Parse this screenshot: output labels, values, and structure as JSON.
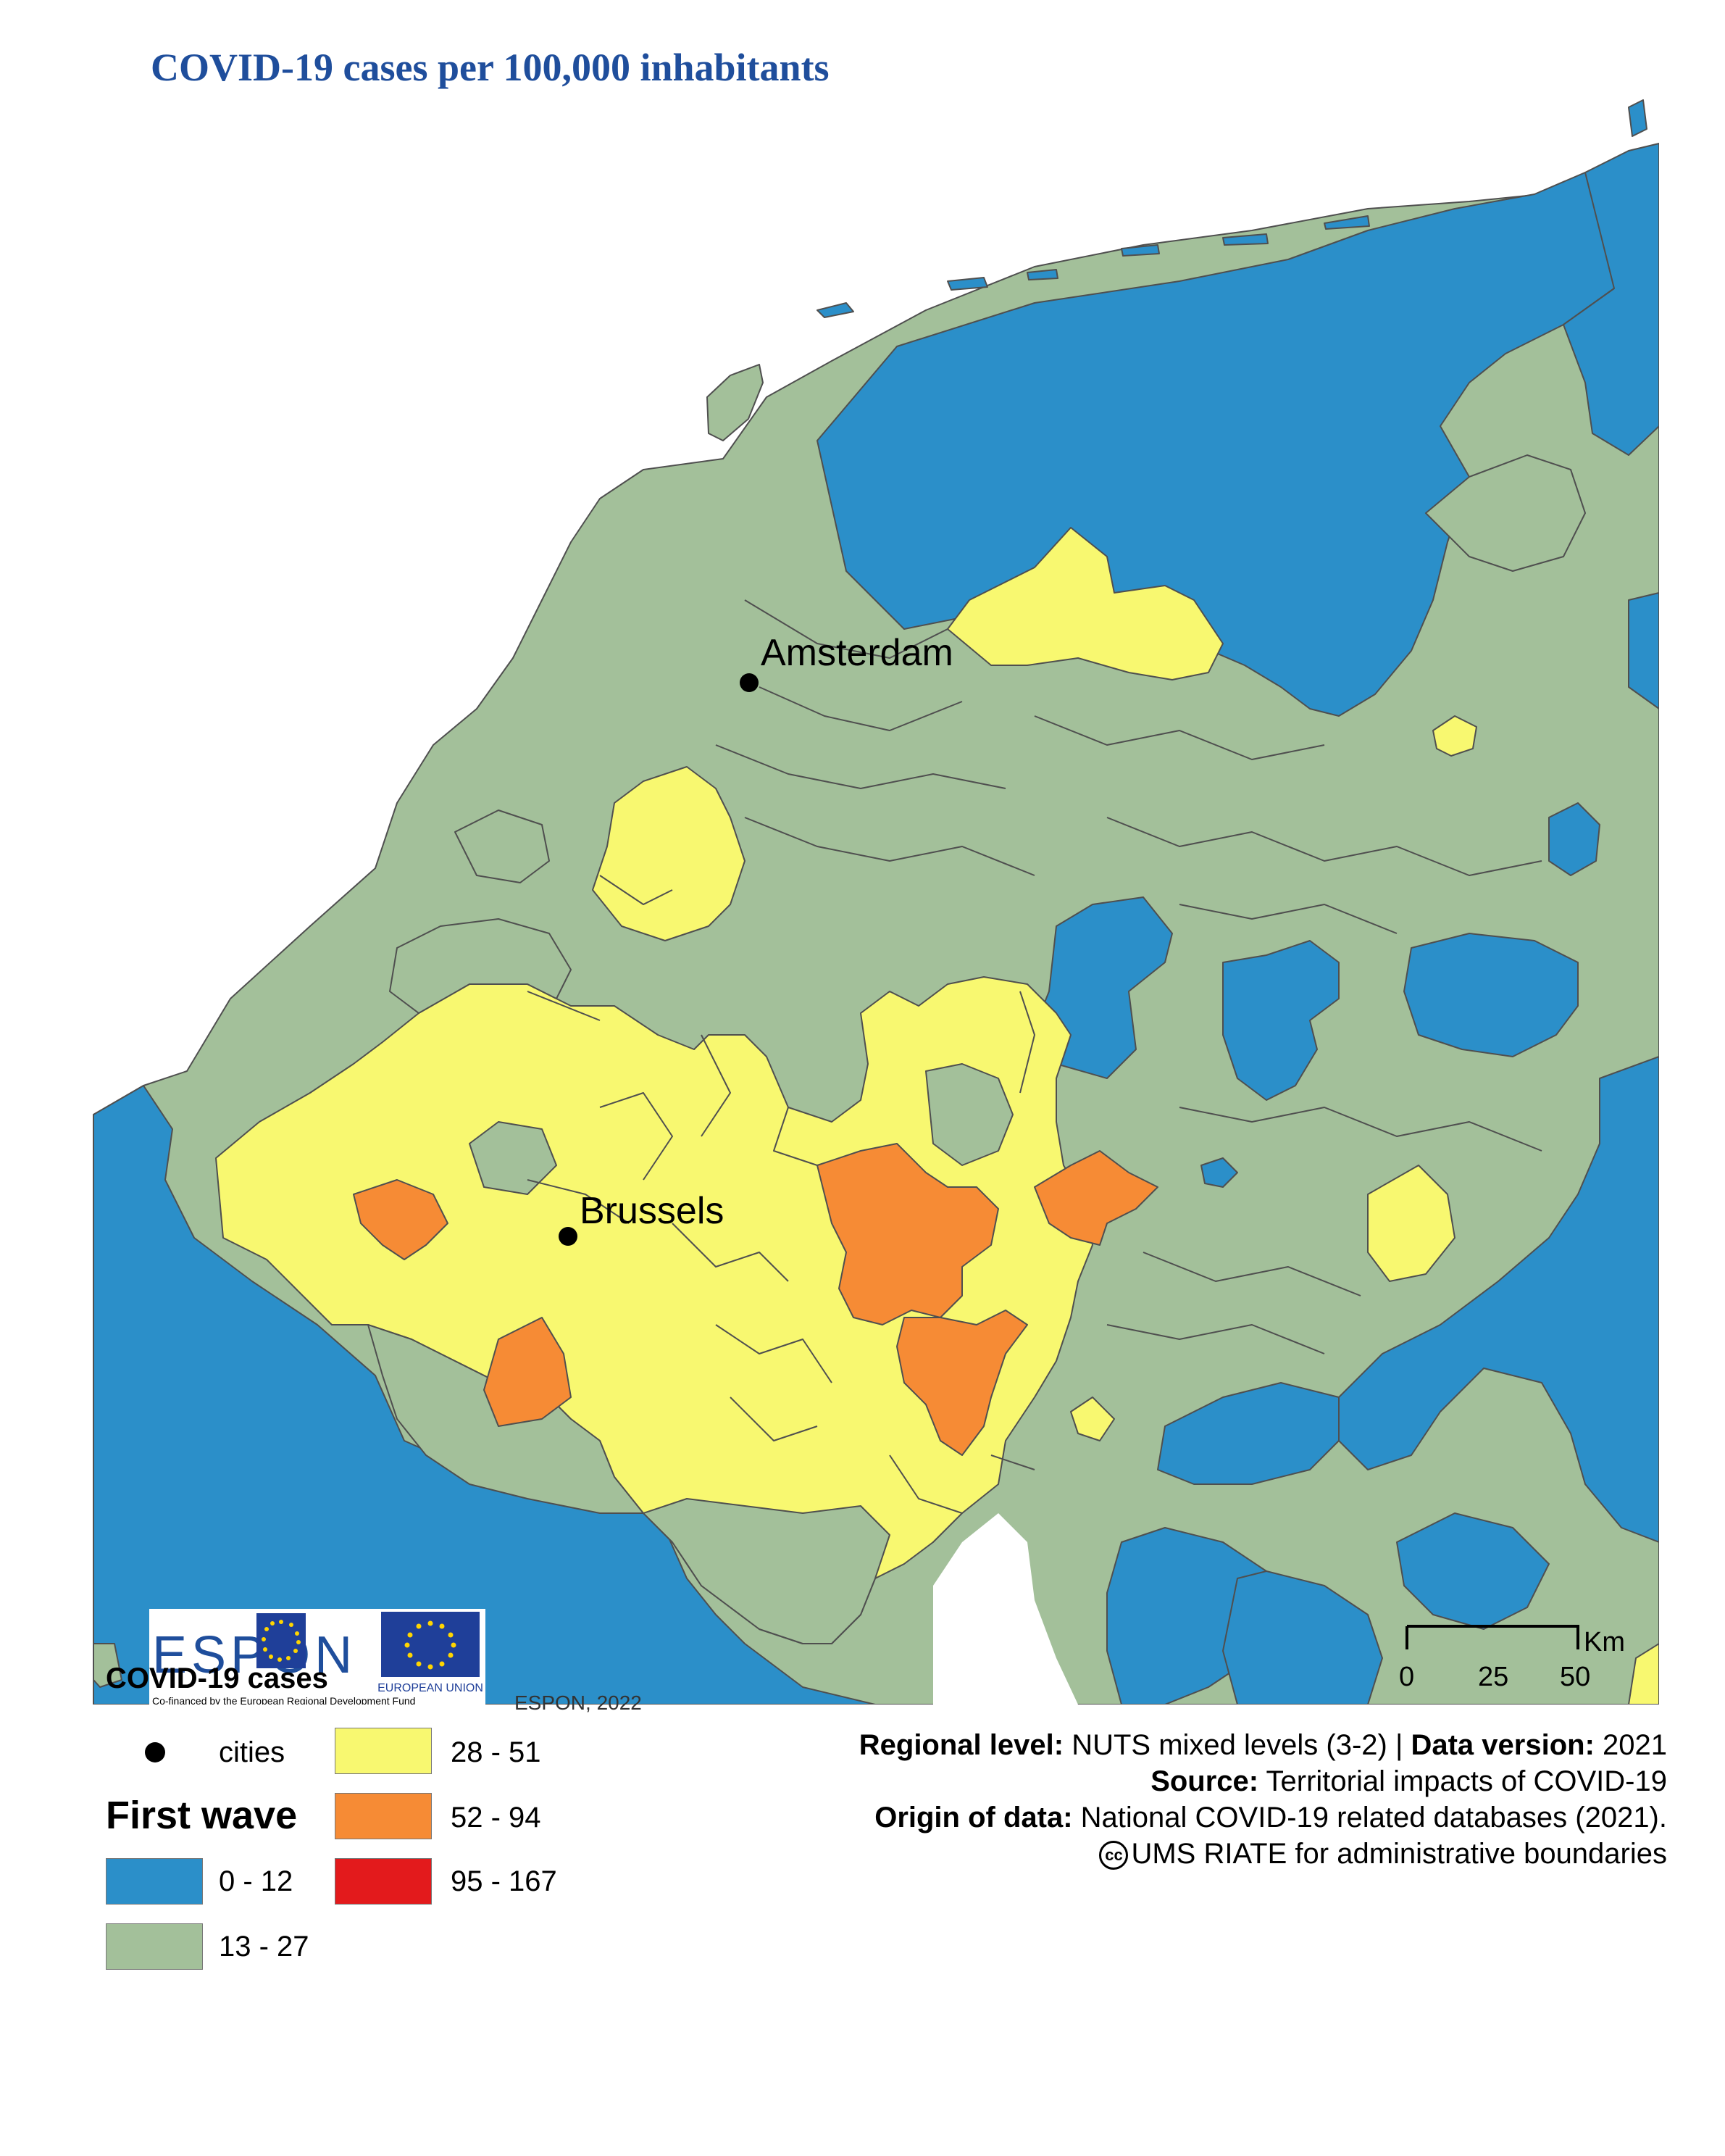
{
  "title": "COVID-19 cases per 100,000 inhabitants",
  "colors": {
    "class_0_12": "#2b8fc9",
    "class_13_27": "#a3c09a",
    "class_28_51": "#f8f870",
    "class_52_94": "#f68b35",
    "class_95_167": "#e31a1c",
    "sea": "#ffffff",
    "border": "#4f4f4f",
    "title": "#1f4e9c"
  },
  "cities": [
    {
      "name": "Amsterdam"
    },
    {
      "name": "Brussels"
    }
  ],
  "scale_bar": {
    "unit": "Km",
    "ticks": [
      "0",
      "25",
      "50"
    ]
  },
  "logo": {
    "text": "ESPON",
    "eu_label": "EUROPEAN UNION",
    "cofinance": "Co-financed by the European Regional Development Fund"
  },
  "credit": "ESPON, 2022",
  "legend": {
    "title": "COVID-19 cases",
    "cities_label": "cities",
    "wave_title": "First wave",
    "classes": [
      {
        "label": "0 - 12",
        "color": "#2b8fc9"
      },
      {
        "label": "13 - 27",
        "color": "#a3c09a"
      },
      {
        "label": "28 - 51",
        "color": "#f8f870"
      },
      {
        "label": "52 - 94",
        "color": "#f68b35"
      },
      {
        "label": "95 - 167",
        "color": "#e31a1c"
      }
    ]
  },
  "meta": {
    "regional_level_label": "Regional level:",
    "regional_level_value": "NUTS mixed levels (3-2) |",
    "data_version_label": "Data version:",
    "data_version_value": "2021",
    "source_label": "Source:",
    "source_value": "Territorial impacts of COVID-19",
    "origin_label": "Origin of data:",
    "origin_value": "National COVID-19 related databases (2021).",
    "boundaries_cc": "cc",
    "boundaries_value": "UMS RIATE for administrative boundaries"
  }
}
